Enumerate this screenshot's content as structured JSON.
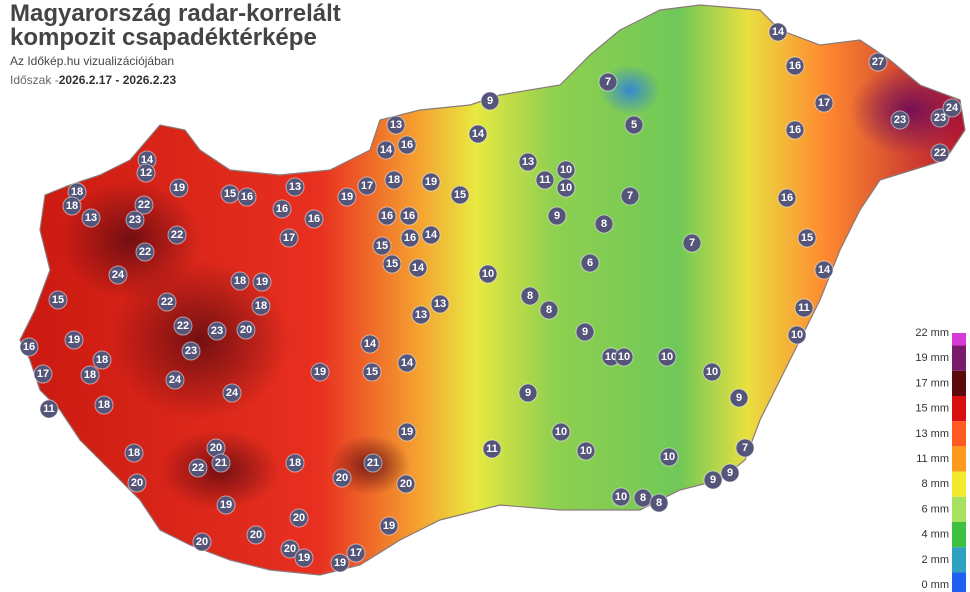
{
  "header": {
    "title_line1": "Magyarország radar-korrelált",
    "title_line2": "kompozit csapadéktérképe",
    "subtitle": "Az Időkép.hu vizualizációjában",
    "period_label": "Időszak -",
    "period": "2026.2.17 - 2026.2.23"
  },
  "marker_color": "#55557a",
  "legend": [
    {
      "label": "22 mm",
      "color": "#d63bd6"
    },
    {
      "label": "19 mm",
      "color": "#7a1a6a"
    },
    {
      "label": "17 mm",
      "color": "#5a0a0a"
    },
    {
      "label": "15 mm",
      "color": "#d81010"
    },
    {
      "label": "13 mm",
      "color": "#ff5a20"
    },
    {
      "label": "11 mm",
      "color": "#ff9a20"
    },
    {
      "label": "8 mm",
      "color": "#f5e830"
    },
    {
      "label": "6 mm",
      "color": "#a8e060"
    },
    {
      "label": "4 mm",
      "color": "#40c040"
    },
    {
      "label": "2 mm",
      "color": "#30a0c0"
    },
    {
      "label": "0 mm",
      "color": "#2060f0"
    }
  ],
  "stations": [
    14,
    7,
    9,
    5,
    27,
    16,
    17,
    16,
    23,
    23,
    24,
    22,
    13,
    16,
    14,
    14,
    13,
    10,
    11,
    10,
    7,
    9,
    8,
    7,
    6,
    16,
    15,
    14,
    11,
    10,
    14,
    12,
    19,
    15,
    16,
    13,
    17,
    19,
    18,
    19,
    15,
    18,
    18,
    13,
    22,
    23,
    16,
    16,
    16,
    16,
    22,
    22,
    17,
    14,
    16,
    15,
    15,
    14,
    10,
    24,
    18,
    19,
    15,
    22,
    18,
    13,
    13,
    8,
    8,
    22,
    23,
    20,
    19,
    9,
    16,
    23,
    18,
    14,
    14,
    18,
    17,
    24,
    24,
    19,
    15,
    10,
    10,
    10,
    10,
    9,
    9,
    11,
    18,
    19,
    10,
    10,
    11,
    10,
    7,
    20,
    18,
    21,
    22,
    18,
    21,
    20,
    20,
    20,
    9,
    9,
    19,
    20,
    19,
    20,
    20,
    20,
    19,
    17,
    19,
    10,
    8,
    8
  ]
}
